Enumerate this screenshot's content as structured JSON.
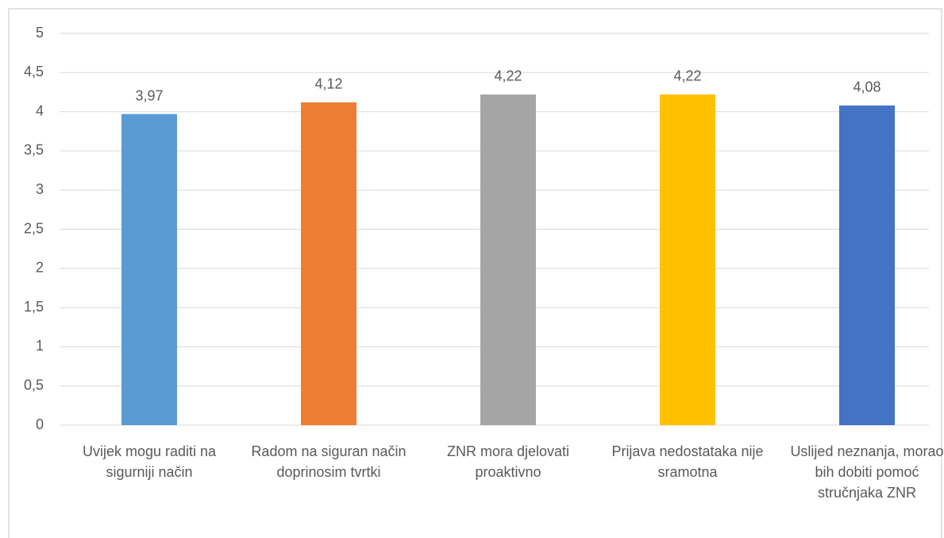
{
  "chart_data": {
    "type": "bar",
    "categories": [
      "Uvijek mogu raditi na sigurniji način",
      "Radom na siguran način doprinosim tvrtki",
      "ZNR mora djelovati proaktivno",
      "Prijava nedostataka nije sramotna",
      "Uslijed neznanja, morao bih dobiti pomoć stručnjaka ZNR"
    ],
    "values": [
      3.97,
      4.12,
      4.22,
      4.22,
      4.08
    ],
    "value_labels": [
      "3,97",
      "4,12",
      "4,22",
      "4,22",
      "4,08"
    ],
    "colors": [
      "#5b9bd5",
      "#ed7d31",
      "#a5a5a5",
      "#ffc000",
      "#4472c4"
    ],
    "ylim": [
      0,
      5
    ],
    "yticks": [
      0,
      {
        "value": 0.5,
        "label": "0,5"
      },
      1,
      {
        "value": 1.5,
        "label": "1,5"
      },
      2,
      {
        "value": 2.5,
        "label": "2,5"
      },
      3,
      {
        "value": 3.5,
        "label": "3,5"
      },
      4,
      {
        "value": 4.5,
        "label": "4,5"
      },
      5
    ],
    "grid": true
  }
}
